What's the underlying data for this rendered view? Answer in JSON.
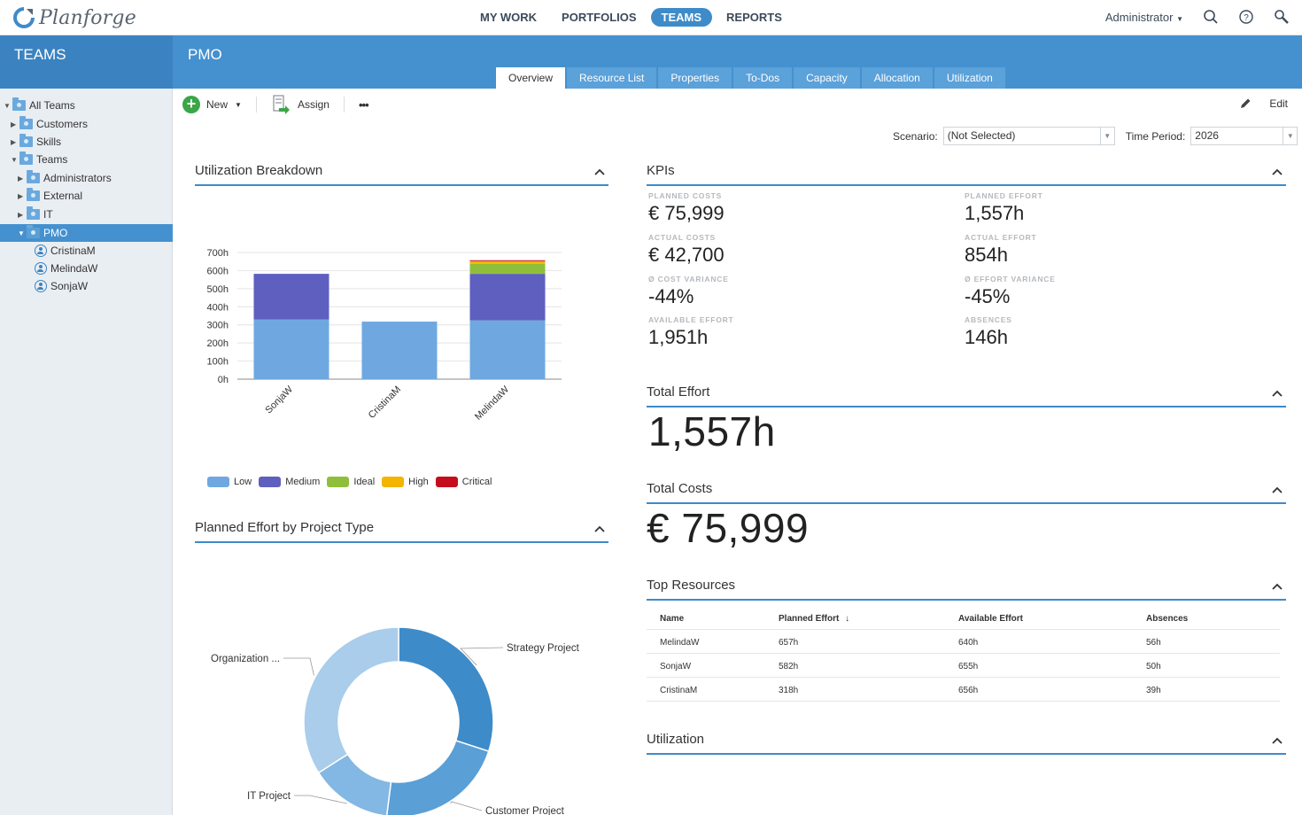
{
  "app": {
    "name": "Planforge"
  },
  "nav": {
    "items": [
      "MY WORK",
      "PORTFOLIOS",
      "TEAMS",
      "REPORTS"
    ],
    "active": "TEAMS",
    "user": "Administrator"
  },
  "header": {
    "section": "TEAMS",
    "title": "PMO"
  },
  "tabs": [
    "Overview",
    "Resource List",
    "Properties",
    "To-Dos",
    "Capacity",
    "Allocation",
    "Utilization"
  ],
  "sidebar": {
    "items": [
      {
        "label": "All Teams",
        "type": "folder",
        "level": 0,
        "expanded": true
      },
      {
        "label": "Customers",
        "type": "folder",
        "level": 1
      },
      {
        "label": "Skills",
        "type": "folder",
        "level": 1
      },
      {
        "label": "Teams",
        "type": "folder",
        "level": 1,
        "expanded": true
      },
      {
        "label": "Administrators",
        "type": "folder",
        "level": 2
      },
      {
        "label": "External",
        "type": "folder",
        "level": 2
      },
      {
        "label": "IT",
        "type": "folder",
        "level": 2
      },
      {
        "label": "PMO",
        "type": "folder",
        "level": 2,
        "expanded": true,
        "selected": true
      },
      {
        "label": "CristinaM",
        "type": "person",
        "level": 3
      },
      {
        "label": "MelindaW",
        "type": "person",
        "level": 3
      },
      {
        "label": "SonjaW",
        "type": "person",
        "level": 3
      }
    ]
  },
  "toolbar": {
    "new_label": "New",
    "assign_label": "Assign",
    "more_label": "•••",
    "edit_label": "Edit"
  },
  "filters": {
    "scenario_label": "Scenario:",
    "scenario_value": "(Not Selected)",
    "period_label": "Time Period:",
    "period_value": "2026"
  },
  "panels": {
    "utilization_breakdown": "Utilization Breakdown",
    "kpis": "KPIs",
    "planned_effort_by_type": "Planned Effort by Project Type",
    "total_effort": "Total Effort",
    "total_costs": "Total Costs",
    "top_resources": "Top Resources",
    "utilization": "Utilization"
  },
  "kpis": [
    {
      "label": "PLANNED COSTS",
      "value": "€ 75,999"
    },
    {
      "label": "PLANNED EFFORT",
      "value": "1,557h"
    },
    {
      "label": "ACTUAL COSTS",
      "value": "€ 42,700"
    },
    {
      "label": "ACTUAL EFFORT",
      "value": "854h"
    },
    {
      "label": "Ø COST VARIANCE",
      "value": "-44%"
    },
    {
      "label": "Ø EFFORT VARIANCE",
      "value": "-45%"
    },
    {
      "label": "AVAILABLE EFFORT",
      "value": "1,951h"
    },
    {
      "label": "ABSENCES",
      "value": "146h"
    }
  ],
  "total_effort_value": "1,557h",
  "total_costs_value": "€ 75,999",
  "top_resources": {
    "columns": [
      "Name",
      "Planned Effort",
      "Available Effort",
      "Absences"
    ],
    "sort_indicator": "↓",
    "rows": [
      [
        "MelindaW",
        "657h",
        "640h",
        "56h"
      ],
      [
        "SonjaW",
        "582h",
        "655h",
        "50h"
      ],
      [
        "CristinaM",
        "318h",
        "656h",
        "39h"
      ]
    ]
  },
  "colors": {
    "low": "#6fa8e0",
    "medium": "#5e5fbf",
    "ideal": "#8fbf3a",
    "high": "#f4b400",
    "critical": "#c40e1c",
    "accent": "#3e8bc9"
  },
  "chart_data": [
    {
      "type": "bar",
      "stacked": true,
      "categories": [
        "SonjaW",
        "CristinaM",
        "MelindaW"
      ],
      "series": [
        {
          "name": "Low",
          "values": [
            330,
            318,
            325
          ]
        },
        {
          "name": "Medium",
          "values": [
            252,
            0,
            257
          ]
        },
        {
          "name": "Ideal",
          "values": [
            0,
            0,
            55
          ]
        },
        {
          "name": "High",
          "values": [
            0,
            0,
            15
          ]
        },
        {
          "name": "Critical",
          "values": [
            0,
            0,
            5
          ]
        }
      ],
      "ylim": [
        0,
        700
      ],
      "yticks": [
        "0h",
        "100h",
        "200h",
        "300h",
        "400h",
        "500h",
        "600h",
        "700h"
      ],
      "legend": "bottom"
    },
    {
      "type": "pie",
      "donut": true,
      "labels": [
        "Strategy Project",
        "Customer Project",
        "IT Project",
        "Organization ..."
      ],
      "values": [
        30,
        22,
        14,
        34
      ],
      "colors": [
        "#3e8bc9",
        "#5a9fd6",
        "#82b8e3",
        "#a9cdeb"
      ]
    }
  ]
}
